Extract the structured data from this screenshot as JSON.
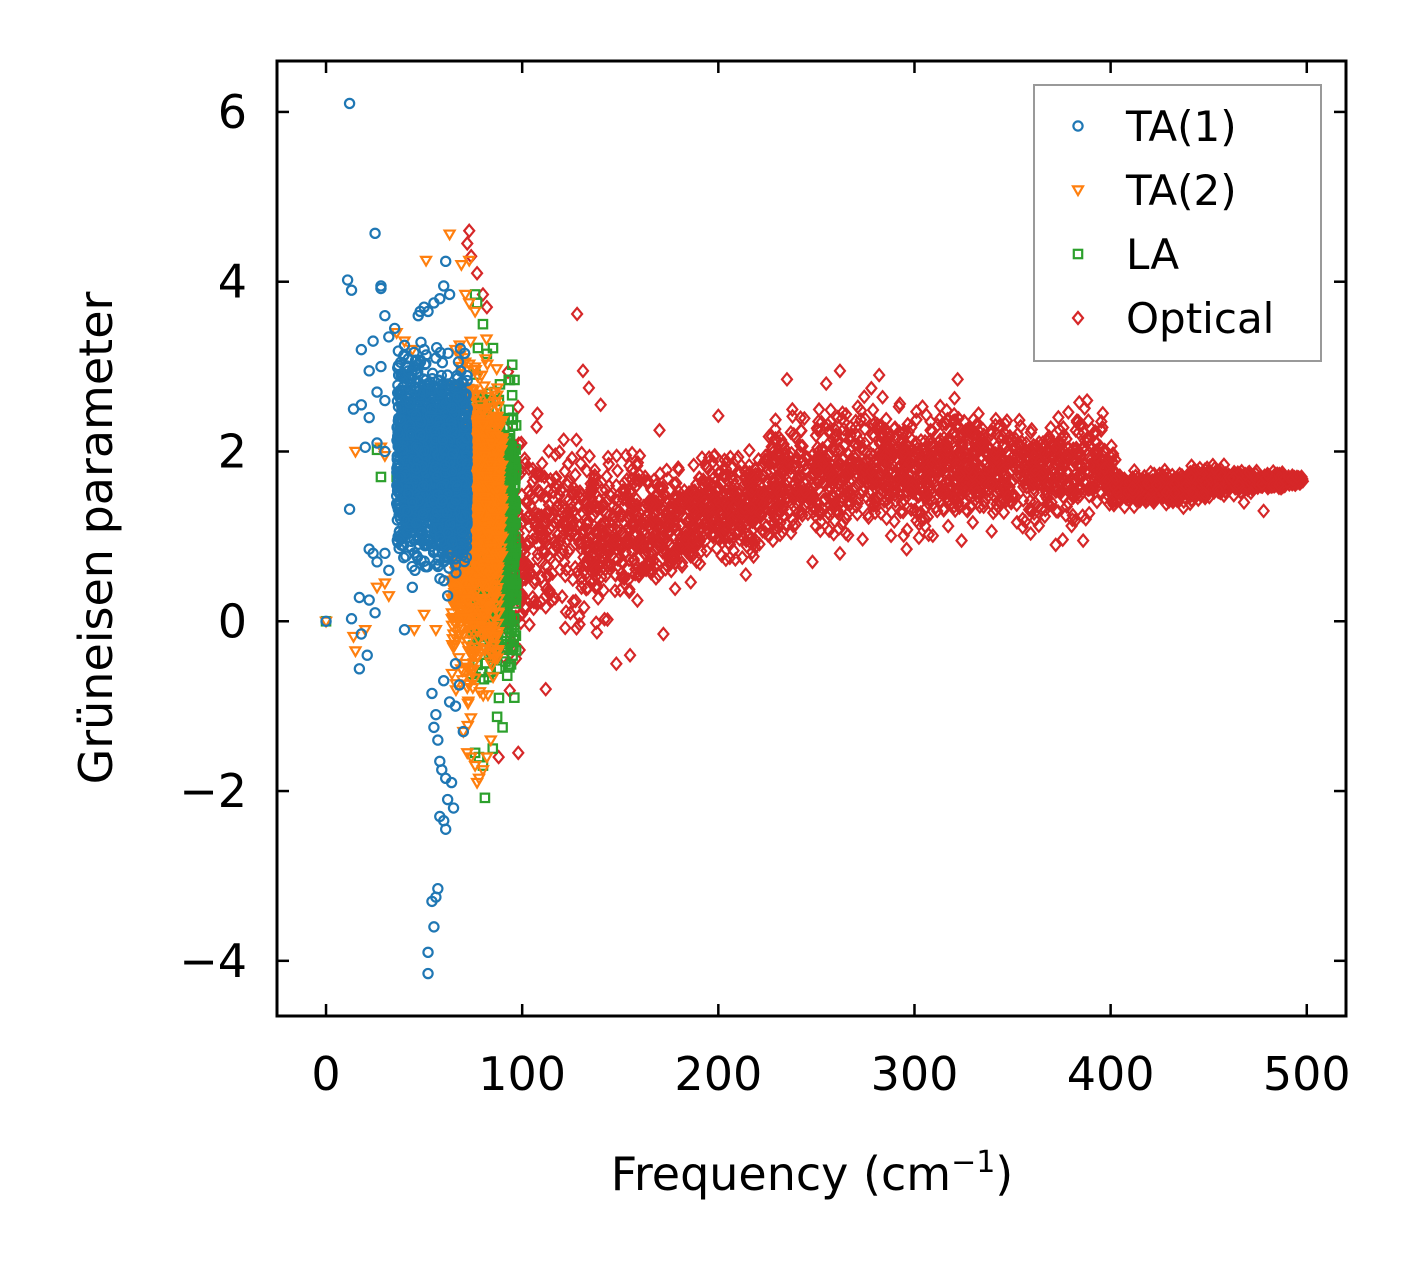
{
  "chart_data": {
    "type": "scatter",
    "xlabel": "Frequency (cm",
    "xlabel_sup": "−1",
    "xlabel_close": ")",
    "ylabel": "Grüneisen parameter",
    "xlim": [
      -25,
      520
    ],
    "ylim": [
      -4.65,
      6.6
    ],
    "xticks": [
      0,
      100,
      200,
      300,
      400,
      500
    ],
    "xtick_labels": [
      "0",
      "100",
      "200",
      "300",
      "400",
      "500"
    ],
    "yticks": [
      -4,
      -2,
      0,
      2,
      4,
      6
    ],
    "ytick_labels": [
      "−4",
      "−2",
      "0",
      "2",
      "4",
      "6"
    ],
    "legend_position": "top-right",
    "series": [
      {
        "name": "TA(1)",
        "marker": "circle",
        "color": "#1f77b4",
        "points": [
          [
            0,
            0
          ],
          [
            12,
            6.1
          ],
          [
            25,
            4.57
          ],
          [
            11,
            4.02
          ],
          [
            13,
            3.9
          ],
          [
            28,
            3.92
          ],
          [
            28,
            3.95
          ],
          [
            18,
            3.2
          ],
          [
            22,
            2.95
          ],
          [
            24,
            3.3
          ],
          [
            26,
            2.7
          ],
          [
            30,
            3.6
          ],
          [
            32,
            3.35
          ],
          [
            35,
            3.45
          ],
          [
            38,
            3.05
          ],
          [
            40,
            3.25
          ],
          [
            42,
            2.95
          ],
          [
            45,
            3.0
          ],
          [
            47,
            3.6
          ],
          [
            48,
            3.65
          ],
          [
            50,
            3.7
          ],
          [
            52,
            3.65
          ],
          [
            55,
            3.75
          ],
          [
            58,
            3.8
          ],
          [
            60,
            3.95
          ],
          [
            61,
            4.24
          ],
          [
            63,
            3.85
          ],
          [
            28,
            3.0
          ],
          [
            30,
            2.6
          ],
          [
            14,
            2.5
          ],
          [
            18,
            2.55
          ],
          [
            20,
            2.05
          ],
          [
            22,
            2.4
          ],
          [
            26,
            2.1
          ],
          [
            30,
            2.0
          ],
          [
            12,
            1.32
          ],
          [
            22,
            0.85
          ],
          [
            24,
            0.8
          ],
          [
            26,
            0.7
          ],
          [
            30,
            0.8
          ],
          [
            32,
            0.6
          ],
          [
            17,
            0.28
          ],
          [
            22,
            0.25
          ],
          [
            25,
            0.1
          ],
          [
            13,
            0.03
          ],
          [
            18,
            -0.15
          ],
          [
            21,
            -0.4
          ],
          [
            17,
            -0.56
          ],
          [
            40,
            -0.1
          ],
          [
            38,
            1.7
          ],
          [
            40,
            1.2
          ],
          [
            42,
            1.5
          ],
          [
            44,
            0.4
          ],
          [
            54,
            -0.85
          ],
          [
            56,
            -1.1
          ],
          [
            55,
            -1.25
          ],
          [
            57,
            -1.4
          ],
          [
            60,
            -0.7
          ],
          [
            63,
            -0.95
          ],
          [
            66,
            -1.0
          ],
          [
            68,
            -0.75
          ],
          [
            70,
            -1.3
          ],
          [
            58,
            -1.65
          ],
          [
            59,
            -1.75
          ],
          [
            61,
            -1.85
          ],
          [
            62,
            -2.1
          ],
          [
            64,
            -1.9
          ],
          [
            65,
            -2.2
          ],
          [
            60,
            -2.35
          ],
          [
            61,
            -2.45
          ],
          [
            58,
            -2.3
          ],
          [
            57,
            -3.15
          ],
          [
            56,
            -3.25
          ],
          [
            54,
            -3.3
          ],
          [
            55,
            -3.6
          ],
          [
            52,
            -3.9
          ],
          [
            52,
            -4.15
          ],
          [
            50,
            3.2
          ],
          [
            52,
            2.8
          ],
          [
            54,
            2.5
          ],
          [
            56,
            3.1
          ],
          [
            48,
            2.2
          ],
          [
            46,
            1.8
          ],
          [
            44,
            1.4
          ],
          [
            58,
            1.0
          ],
          [
            60,
            0.7
          ],
          [
            62,
            0.3
          ],
          [
            66,
            -0.5
          ]
        ],
        "clusters": [
          {
            "x_range": [
              36,
              72
            ],
            "y_range": [
              0.3,
              3.5
            ],
            "n": 1400
          },
          {
            "x_range": [
              55,
              72
            ],
            "y_range": [
              0.4,
              2.8
            ],
            "n": 700
          }
        ]
      },
      {
        "name": "TA(2)",
        "marker": "triangle-down",
        "color": "#ff7f0e",
        "points": [
          [
            0,
            0
          ],
          [
            63,
            4.56
          ],
          [
            51,
            4.25
          ],
          [
            69,
            4.2
          ],
          [
            73,
            4.25
          ],
          [
            71,
            3.85
          ],
          [
            73,
            3.75
          ],
          [
            76,
            3.65
          ],
          [
            28,
            2.05
          ],
          [
            30,
            1.95
          ],
          [
            15,
            2.0
          ],
          [
            26,
            0.4
          ],
          [
            30,
            0.45
          ],
          [
            32,
            0.3
          ],
          [
            15,
            -0.35
          ],
          [
            14,
            -0.18
          ],
          [
            20,
            -0.1
          ],
          [
            56,
            -0.1
          ],
          [
            50,
            0.08
          ],
          [
            45,
            -0.1
          ],
          [
            70,
            -1.3
          ],
          [
            72,
            -1.55
          ],
          [
            74,
            -1.6
          ],
          [
            76,
            -1.7
          ],
          [
            78,
            -1.85
          ],
          [
            80,
            -1.75
          ],
          [
            82,
            -1.6
          ],
          [
            77,
            -1.9
          ],
          [
            84,
            -1.4
          ],
          [
            36,
            3.4
          ],
          [
            40,
            3.3
          ],
          [
            44,
            3.2
          ],
          [
            66,
            3.2
          ]
        ],
        "clusters": [
          {
            "x_range": [
              64,
              88
            ],
            "y_range": [
              -1.4,
              3.6
            ],
            "n": 1000
          },
          {
            "x_range": [
              72,
              90
            ],
            "y_range": [
              0.3,
              2.8
            ],
            "n": 500
          }
        ]
      },
      {
        "name": "LA",
        "marker": "square",
        "color": "#2ca02c",
        "points": [
          [
            0,
            0
          ],
          [
            26,
            2.02
          ],
          [
            28,
            1.7
          ],
          [
            36,
            1.7
          ],
          [
            48,
            2.05
          ],
          [
            38,
            2.25
          ],
          [
            76,
            3.85
          ],
          [
            77,
            3.75
          ],
          [
            80,
            3.5
          ],
          [
            82,
            3.15
          ],
          [
            86,
            2.7
          ],
          [
            88,
            2.2
          ],
          [
            80,
            -1.7
          ],
          [
            81,
            -2.08
          ],
          [
            78,
            -1.6
          ],
          [
            76,
            -1.55
          ],
          [
            85,
            -1.5
          ],
          [
            90,
            -1.25
          ],
          [
            96,
            -0.9
          ],
          [
            94,
            0.65
          ],
          [
            92,
            1.9
          ]
        ],
        "clusters": [
          {
            "x_range": [
              74,
              97
            ],
            "y_range": [
              -1.3,
              3.3
            ],
            "n": 800
          },
          {
            "x_range": [
              80,
              95
            ],
            "y_range": [
              0.4,
              2.4
            ],
            "n": 400
          }
        ]
      },
      {
        "name": "Optical",
        "marker": "diamond",
        "color": "#d62728",
        "points": [
          [
            73,
            4.6
          ],
          [
            72,
            4.45
          ],
          [
            74,
            4.3
          ],
          [
            77,
            4.1
          ],
          [
            80,
            3.85
          ],
          [
            82,
            3.7
          ],
          [
            128,
            3.62
          ],
          [
            131,
            2.95
          ],
          [
            134,
            2.75
          ],
          [
            140,
            2.55
          ],
          [
            235,
            2.85
          ],
          [
            255,
            2.8
          ],
          [
            262,
            2.95
          ],
          [
            282,
            2.9
          ],
          [
            322,
            2.85
          ],
          [
            388,
            2.6
          ],
          [
            396,
            2.45
          ],
          [
            200,
            2.42
          ],
          [
            170,
            2.25
          ],
          [
            160,
            1.95
          ],
          [
            98,
            -1.55
          ],
          [
            88,
            -1.6
          ],
          [
            112,
            -0.8
          ],
          [
            148,
            -0.5
          ],
          [
            155,
            -0.4
          ],
          [
            172,
            -0.15
          ],
          [
            214,
            0.55
          ],
          [
            248,
            0.7
          ],
          [
            262,
            0.8
          ],
          [
            296,
            0.85
          ],
          [
            324,
            0.95
          ],
          [
            372,
            0.9
          ],
          [
            386,
            0.95
          ],
          [
            412,
            1.35
          ],
          [
            422,
            1.4
          ],
          [
            478,
            1.3
          ],
          [
            468,
            1.4
          ],
          [
            497,
            1.65
          ],
          [
            498,
            1.65
          ],
          [
            495,
            1.7
          ]
        ],
        "bands": [
          {
            "x": 88,
            "y_low": -1.2,
            "y_high": 3.4
          },
          {
            "x": 100,
            "y_low": -0.9,
            "y_high": 2.7
          },
          {
            "x": 120,
            "y_low": -0.4,
            "y_high": 2.45
          },
          {
            "x": 140,
            "y_low": -0.35,
            "y_high": 2.35
          },
          {
            "x": 160,
            "y_low": 0.0,
            "y_high": 2.2
          },
          {
            "x": 180,
            "y_low": 0.25,
            "y_high": 2.0
          },
          {
            "x": 200,
            "y_low": 0.5,
            "y_high": 2.15
          },
          {
            "x": 220,
            "y_low": 0.55,
            "y_high": 2.25
          },
          {
            "x": 240,
            "y_low": 0.7,
            "y_high": 2.7
          },
          {
            "x": 260,
            "y_low": 0.75,
            "y_high": 2.75
          },
          {
            "x": 280,
            "y_low": 0.85,
            "y_high": 2.85
          },
          {
            "x": 300,
            "y_low": 0.9,
            "y_high": 2.55
          },
          {
            "x": 320,
            "y_low": 0.95,
            "y_high": 2.8
          },
          {
            "x": 340,
            "y_low": 1.0,
            "y_high": 2.5
          },
          {
            "x": 360,
            "y_low": 0.95,
            "y_high": 2.6
          },
          {
            "x": 380,
            "y_low": 0.95,
            "y_high": 2.65
          },
          {
            "x": 395,
            "y_low": 1.15,
            "y_high": 2.65
          },
          {
            "x": 405,
            "y_low": 1.3,
            "y_high": 1.85
          },
          {
            "x": 420,
            "y_low": 1.35,
            "y_high": 1.8
          },
          {
            "x": 435,
            "y_low": 1.3,
            "y_high": 1.85
          },
          {
            "x": 450,
            "y_low": 1.4,
            "y_high": 1.9
          },
          {
            "x": 465,
            "y_low": 1.45,
            "y_high": 1.85
          },
          {
            "x": 480,
            "y_low": 1.5,
            "y_high": 1.8
          },
          {
            "x": 498,
            "y_low": 1.6,
            "y_high": 1.72
          }
        ],
        "band_density": 3200
      }
    ]
  }
}
